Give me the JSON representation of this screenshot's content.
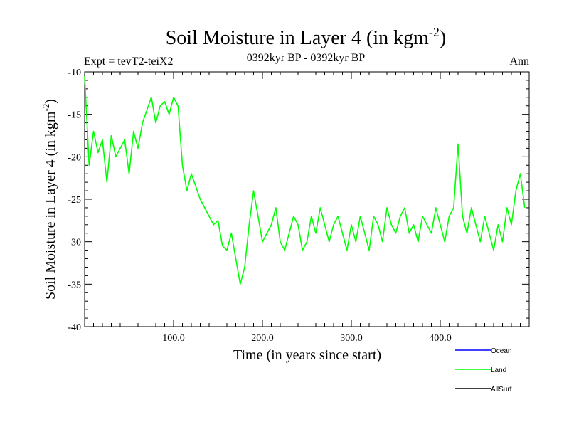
{
  "chart_data": {
    "type": "line",
    "title": "Soil Moisture in Layer 4 (in kgm",
    "title_sup": "-2",
    "title_end": ")",
    "subtitle": "0392kyr BP - 0392kyr BP",
    "expt_label": "Expt = tevT2-teiX2",
    "season_label": "Ann",
    "xlabel": "Time (in years since start)",
    "ylabel": "Soil Moisture in Layer 4 (in kgm",
    "ylabel_sup": "-2",
    "ylabel_end": ")",
    "xlim": [
      0,
      500
    ],
    "ylim": [
      -40,
      -10
    ],
    "x_ticks": [
      100,
      200,
      300,
      400
    ],
    "x_tick_labels": [
      "100.0",
      "200.0",
      "300.0",
      "400.0"
    ],
    "y_ticks": [
      -40,
      -35,
      -30,
      -25,
      -20,
      -15,
      -10
    ],
    "y_tick_labels": [
      "-40",
      "-35",
      "-30",
      "-25",
      "-20",
      "-15",
      "-10"
    ],
    "grid": false,
    "legend_position": "bottom-right, below plot",
    "legend": [
      {
        "name": "Ocean",
        "color": "#0000ff"
      },
      {
        "name": "Land",
        "color": "#00ff00"
      },
      {
        "name": "AllSurf",
        "color": "#000000"
      }
    ],
    "series": [
      {
        "name": "Land",
        "color": "#00ff00",
        "x": [
          0,
          5,
          10,
          15,
          20,
          25,
          30,
          35,
          40,
          45,
          50,
          55,
          60,
          65,
          70,
          75,
          80,
          85,
          90,
          95,
          100,
          105,
          110,
          115,
          120,
          125,
          130,
          135,
          140,
          145,
          150,
          155,
          160,
          165,
          170,
          175,
          180,
          185,
          190,
          195,
          200,
          205,
          210,
          215,
          220,
          225,
          230,
          235,
          240,
          245,
          250,
          255,
          260,
          265,
          270,
          275,
          280,
          285,
          290,
          295,
          300,
          305,
          310,
          315,
          320,
          325,
          330,
          335,
          340,
          345,
          350,
          355,
          360,
          365,
          370,
          375,
          380,
          385,
          390,
          395,
          400,
          405,
          410,
          415,
          420,
          425,
          430,
          435,
          440,
          445,
          450,
          455,
          460,
          465,
          470,
          475,
          480,
          485,
          490,
          495
        ],
        "y": [
          -10.5,
          -21,
          -17,
          -19.5,
          -18,
          -23,
          -17.5,
          -20,
          -19,
          -18,
          -22,
          -17,
          -19,
          -16,
          -14.5,
          -13,
          -16,
          -14,
          -13.5,
          -15,
          -13,
          -14,
          -21,
          -24,
          -22,
          -23.5,
          -25,
          -26,
          -27,
          -28,
          -27.5,
          -30.5,
          -31,
          -29,
          -32,
          -35,
          -33,
          -28,
          -24,
          -27,
          -30,
          -29,
          -28,
          -26,
          -30,
          -31,
          -29,
          -27,
          -28,
          -31,
          -30,
          -27,
          -29,
          -26,
          -28,
          -30,
          -28,
          -27,
          -29,
          -31,
          -28,
          -30,
          -27,
          -29,
          -31,
          -27,
          -28,
          -30,
          -26,
          -28,
          -29,
          -27,
          -26,
          -29,
          -28,
          -30,
          -27,
          -28,
          -29,
          -26,
          -28,
          -30,
          -27,
          -26,
          -18.5,
          -27,
          -29,
          -26,
          -28,
          -30,
          -27,
          -29,
          -31,
          -28,
          -30,
          -26,
          -28,
          -24,
          -22,
          -26
        ]
      },
      {
        "name": "Ocean",
        "color": "#0000ff",
        "x": [],
        "y": []
      },
      {
        "name": "AllSurf",
        "color": "#000000",
        "x": [],
        "y": []
      }
    ]
  }
}
